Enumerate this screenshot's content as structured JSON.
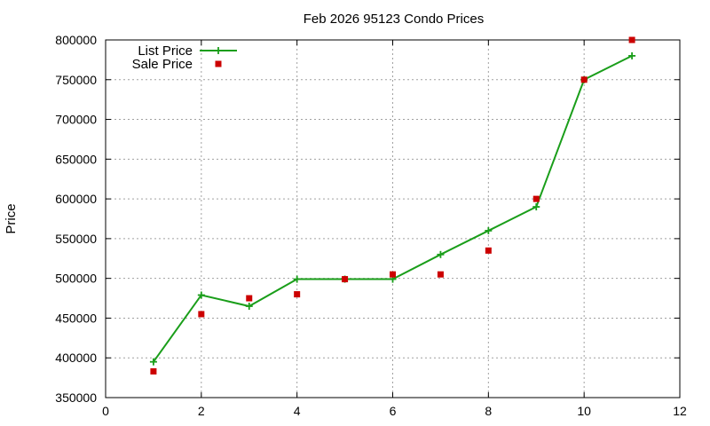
{
  "chart_data": {
    "type": "line",
    "title": "Feb 2026 95123 Condo Prices",
    "xlabel": "",
    "ylabel": "Price",
    "xlim": [
      0,
      12
    ],
    "ylim": [
      350000,
      800000
    ],
    "xticks": [
      0,
      2,
      4,
      6,
      8,
      10,
      12
    ],
    "yticks": [
      350000,
      400000,
      450000,
      500000,
      550000,
      600000,
      650000,
      700000,
      750000,
      800000
    ],
    "grid": true,
    "legend_position": "top-left",
    "series": [
      {
        "name": "List Price",
        "style": "line-with-plus-markers",
        "color": "#1a9e1a",
        "x": [
          1,
          2,
          3,
          4,
          5,
          6,
          7,
          8,
          9,
          10,
          11
        ],
        "y": [
          395000,
          479000,
          465000,
          499000,
          499000,
          499000,
          530000,
          560000,
          590000,
          750000,
          780000
        ]
      },
      {
        "name": "Sale Price",
        "style": "square-markers",
        "color": "#cc0000",
        "x": [
          1,
          2,
          3,
          4,
          5,
          6,
          7,
          8,
          9,
          10,
          11
        ],
        "y": [
          383000,
          455000,
          475000,
          480000,
          499000,
          505000,
          505000,
          535000,
          600000,
          750000,
          800000
        ]
      }
    ]
  }
}
